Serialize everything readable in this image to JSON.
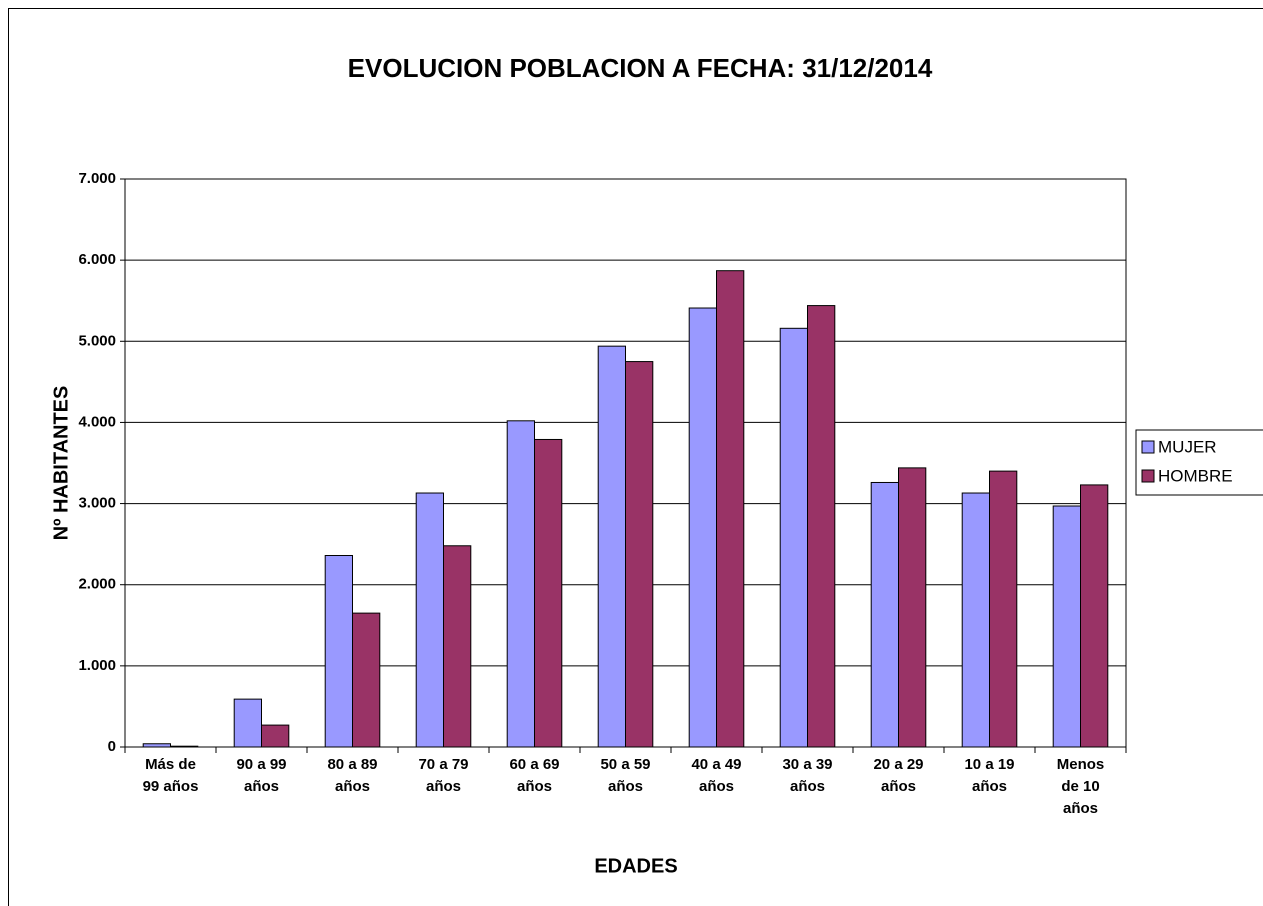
{
  "chart_data": {
    "type": "bar",
    "title": "EVOLUCION POBLACION A FECHA: 31/12/2014",
    "x_label": "EDADES",
    "y_label": "Nº HABITANTES",
    "categories": [
      "Más de 99 años",
      "90 a 99 años",
      "80 a 89 años",
      "70 a 79 años",
      "60 a 69 años",
      "50 a 59 años",
      "40 a 49 años",
      "30 a 39 años",
      "20 a 29 años",
      "10 a 19 años",
      "Menos de 10 años"
    ],
    "series": [
      {
        "name": "MUJER",
        "color": "#9999ff",
        "values": [
          40,
          590,
          2360,
          3130,
          4020,
          4940,
          5410,
          5160,
          3260,
          3130,
          2970
        ]
      },
      {
        "name": "HOMBRE",
        "color": "#993366",
        "values": [
          10,
          270,
          1650,
          2480,
          3790,
          4750,
          5870,
          5440,
          3440,
          3400,
          3230
        ]
      }
    ],
    "ylim": [
      0,
      7000
    ],
    "yticks": [
      0,
      {
        "value": 1000,
        "label": "1.000"
      },
      {
        "value": 2000,
        "label": "2.000"
      },
      {
        "value": 3000,
        "label": "3.000"
      },
      {
        "value": 4000,
        "label": "4.000"
      },
      {
        "value": 5000,
        "label": "5.000"
      },
      {
        "value": 6000,
        "label": "6.000"
      },
      {
        "value": 7000,
        "label": "7.000"
      }
    ],
    "grid": true,
    "legend": "right"
  }
}
